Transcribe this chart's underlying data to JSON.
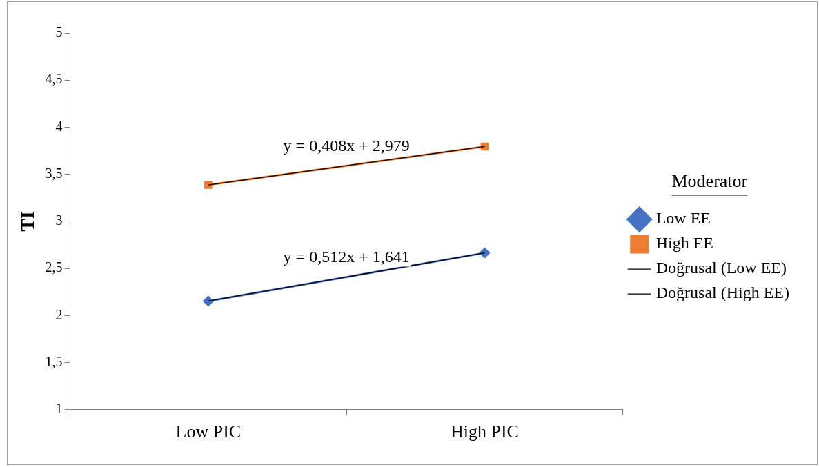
{
  "chart_data": {
    "type": "line",
    "ylabel": "TI",
    "legend_title": "Moderator",
    "legend": "right",
    "grid": false,
    "categories": [
      "Low PIC",
      "High PIC"
    ],
    "ylim": [
      1,
      5
    ],
    "yticks": [
      1,
      {
        "value": 1.5,
        "label": "1,5"
      },
      2,
      {
        "value": 2.5,
        "label": "2,5"
      },
      3,
      {
        "value": 3.5,
        "label": "3,5"
      },
      4,
      {
        "value": 4.5,
        "label": "4,5"
      },
      5
    ],
    "series": [
      {
        "name": "Low EE",
        "color": "#4472c4",
        "marker": "diamond",
        "values": [
          2.153,
          2.665
        ]
      },
      {
        "name": "High EE",
        "color": "#ed7d31",
        "marker": "square",
        "values": [
          3.387,
          3.795
        ]
      },
      {
        "name": "Doğrusal (Low EE)",
        "color": "#000000",
        "marker": "none",
        "type": "line",
        "values": [
          2.153,
          2.665
        ]
      },
      {
        "name": "Doğrusal (High EE)",
        "color": "#000000",
        "marker": "none",
        "type": "line",
        "values": [
          3.387,
          3.795
        ]
      }
    ],
    "annotations": [
      "y = 0,408x + 2,979",
      "y = 0,512x + 1,641"
    ]
  }
}
